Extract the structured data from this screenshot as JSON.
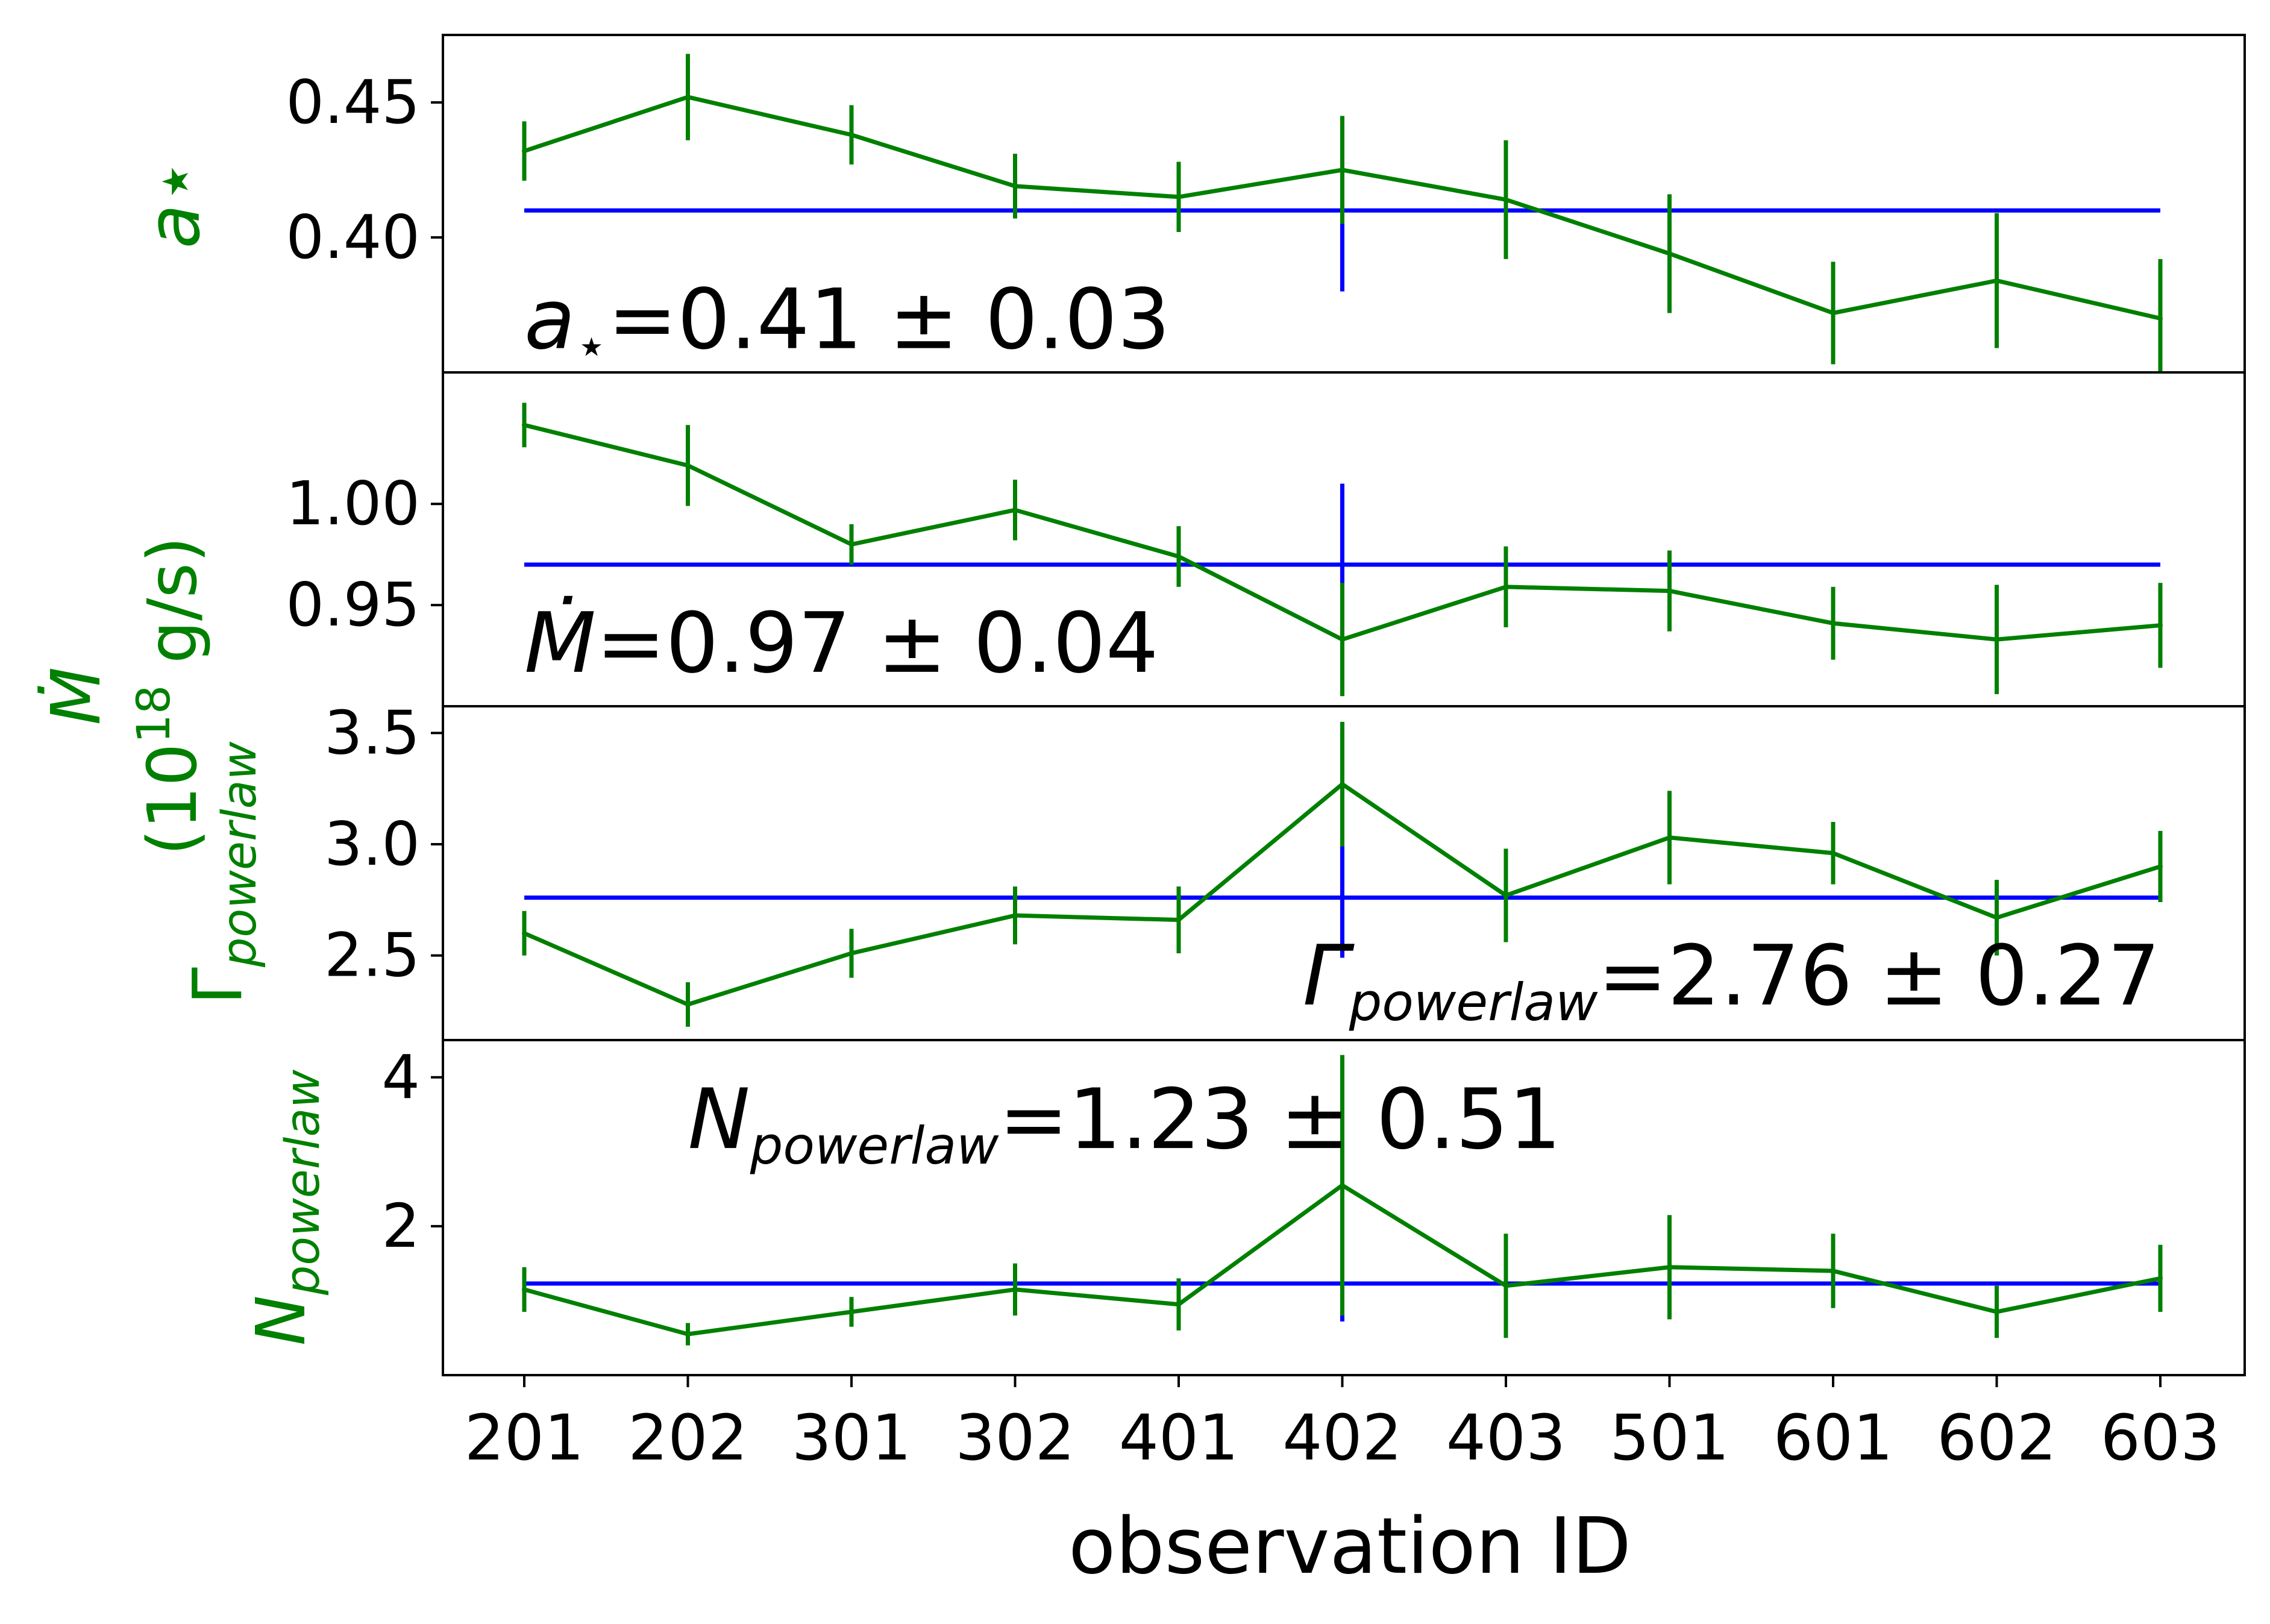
{
  "figure": {
    "xlabel": "observation ID",
    "categories": [
      "201",
      "202",
      "301",
      "302",
      "401",
      "402",
      "403",
      "501",
      "601",
      "602",
      "603"
    ],
    "series_color": "#008000",
    "mean_color": "#0000ff",
    "axis_color": "#000000",
    "label_color": "#008000"
  },
  "chart_data": [
    {
      "type": "line",
      "id": "spin",
      "ylabel": "a⋆",
      "ylabel_parts": [],
      "ylim": [
        0.35,
        0.475
      ],
      "yticks": [
        0.4,
        0.45
      ],
      "ytick_labels": [
        "0.40",
        "0.45"
      ],
      "values": [
        0.432,
        0.452,
        0.438,
        0.419,
        0.415,
        0.425,
        0.414,
        0.394,
        0.372,
        0.384,
        0.37
      ],
      "errors": [
        0.011,
        0.016,
        0.011,
        0.012,
        0.013,
        0.02,
        0.022,
        0.022,
        0.019,
        0.025,
        0.022
      ],
      "mean": 0.41,
      "mean_err": 0.03,
      "annotation": {
        "symbol": "a",
        "sub": "⋆",
        "text": "=0.41 ± 0.03",
        "anchor": "start",
        "at_x": 0,
        "at_y": 0.359
      }
    },
    {
      "type": "line",
      "id": "mdot",
      "ylabel": "Ṁ",
      "ylabel_parts": [
        "(10",
        "18",
        " g/s)"
      ],
      "ylim": [
        0.9,
        1.065
      ],
      "yticks": [
        0.95,
        1.0
      ],
      "ytick_labels": [
        "0.95",
        "1.00"
      ],
      "values": [
        1.039,
        1.019,
        0.98,
        0.997,
        0.974,
        0.933,
        0.959,
        0.957,
        0.941,
        0.933,
        0.94
      ],
      "errors": [
        0.011,
        0.02,
        0.01,
        0.015,
        0.015,
        0.028,
        0.02,
        0.02,
        0.018,
        0.027,
        0.021
      ],
      "mean": 0.97,
      "mean_err": 0.04,
      "annotation": {
        "symbol": "Ṁ",
        "sub": "",
        "text": "=0.97 ± 0.04",
        "anchor": "start",
        "at_x": 0,
        "at_y": 0.917
      }
    },
    {
      "type": "line",
      "id": "gamma",
      "ylabel": "Γ",
      "ylabel_sub": "powerlaw",
      "ylim": [
        2.12,
        3.62
      ],
      "yticks": [
        2.5,
        3.0,
        3.5
      ],
      "ytick_labels": [
        "2.5",
        "3.0",
        "3.5"
      ],
      "values": [
        2.6,
        2.28,
        2.51,
        2.68,
        2.66,
        3.27,
        2.77,
        3.03,
        2.96,
        2.67,
        2.9
      ],
      "errors": [
        0.1,
        0.1,
        0.11,
        0.13,
        0.15,
        0.28,
        0.21,
        0.21,
        0.14,
        0.17,
        0.16
      ],
      "mean": 2.76,
      "mean_err": 0.27,
      "annotation": {
        "symbol": "Γ",
        "sub": "powerlaw",
        "text": "=2.76 ± 0.27",
        "anchor": "end",
        "at_x": 10,
        "at_y": 2.28
      }
    },
    {
      "type": "line",
      "id": "norm",
      "ylabel": "N",
      "ylabel_sub": "powerlaw",
      "ylim": [
        0.0,
        4.5
      ],
      "yticks": [
        2,
        4
      ],
      "ytick_labels": [
        "2",
        "4"
      ],
      "values": [
        1.15,
        0.55,
        0.85,
        1.15,
        0.95,
        2.55,
        1.2,
        1.45,
        1.4,
        0.85,
        1.3
      ],
      "errors": [
        0.3,
        0.15,
        0.2,
        0.35,
        0.35,
        1.75,
        0.7,
        0.7,
        0.5,
        0.35,
        0.45
      ],
      "mean": 1.23,
      "mean_err": 0.51,
      "annotation": {
        "symbol": "N",
        "sub": "powerlaw",
        "text": "=1.23 ± 0.51",
        "anchor": "start",
        "at_x": 1,
        "at_y": 3.05
      }
    }
  ]
}
